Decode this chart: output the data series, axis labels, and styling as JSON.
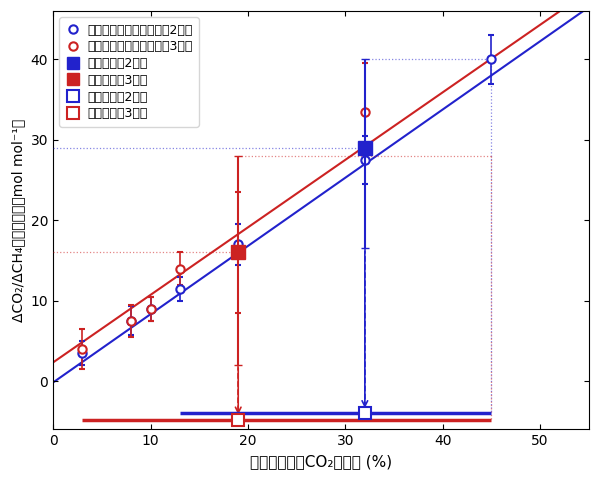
{
  "xlabel": "化石燃料起源CO₂減少率 (%)",
  "ylabel": "ΔCO₂/ΔCH₄比の減少量（mol mol⁻¹）",
  "xlim": [
    0,
    55
  ],
  "ylim": [
    -6,
    46
  ],
  "xticks": [
    0,
    10,
    20,
    30,
    40,
    50
  ],
  "yticks": [
    0,
    10,
    20,
    30,
    40
  ],
  "blue_color": "#2222cc",
  "red_color": "#cc2222",
  "sim_blue_x": [
    3,
    8,
    10,
    13,
    19,
    32,
    45
  ],
  "sim_blue_y": [
    3.5,
    7.5,
    9.0,
    11.5,
    17.0,
    27.5,
    40.0
  ],
  "sim_blue_yerr": [
    1.5,
    1.8,
    1.5,
    1.5,
    2.5,
    3.0,
    3.0
  ],
  "sim_red_x": [
    3,
    8,
    10,
    13,
    19,
    32
  ],
  "sim_red_y": [
    4.0,
    7.5,
    9.0,
    14.0,
    16.0,
    33.5
  ],
  "sim_red_yerr": [
    2.5,
    2.0,
    1.5,
    2.0,
    7.5,
    6.0
  ],
  "obs_blue_x": 32,
  "obs_blue_y": 29.0,
  "obs_blue_yerr_lo": 12.5,
  "obs_blue_yerr_hi": 11.0,
  "obs_red_x": 19,
  "obs_red_y": 16.0,
  "obs_red_yerr_lo": 14.0,
  "obs_red_yerr_hi": 12.0,
  "est_blue_x": 32,
  "est_blue_y": -4.0,
  "est_blue_xerr_lo": 19.0,
  "est_blue_xerr_hi": 13.0,
  "est_red_x": 19,
  "est_red_y": -4.8,
  "est_red_xerr_lo": 16.0,
  "est_red_xerr_hi": 26.0,
  "line_blue": [
    -1,
    55,
    -1.0,
    46.5
  ],
  "line_red": [
    -1,
    55,
    1.5,
    48.5
  ],
  "legend_labels": [
    "シミュレーション結果（2月）",
    "シミュレーション結果（3月）",
    "観測結果（2月）",
    "観測結果（3月）",
    "推定結果（2月）",
    "推定結果（3月）"
  ]
}
